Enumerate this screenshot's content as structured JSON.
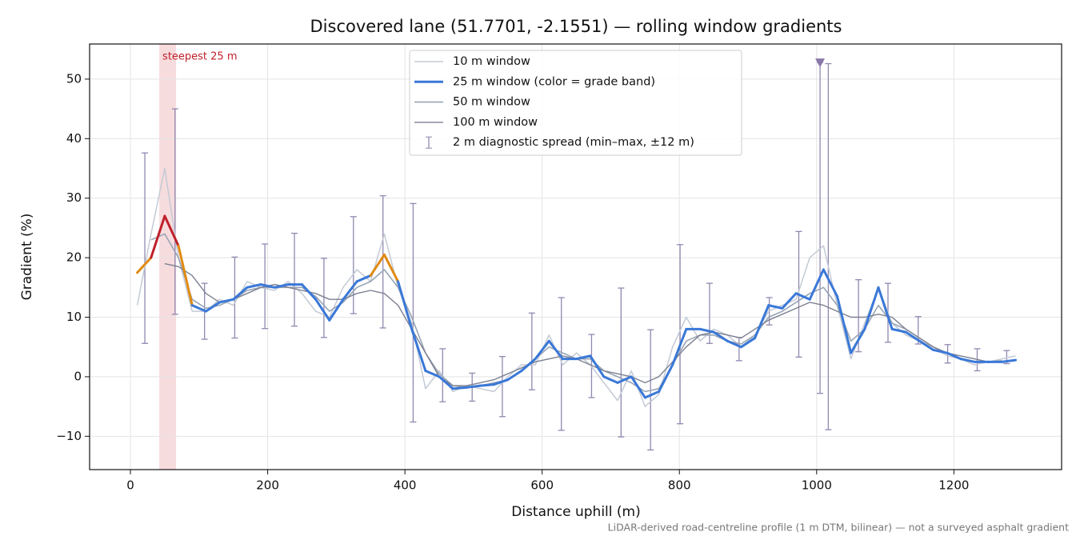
{
  "chart_data": {
    "type": "line",
    "title": "Discovered lane (51.7701, -2.1551) — rolling window gradients",
    "x_label": "Distance uphill (m)",
    "y_label": "Gradient (%)",
    "footnote": "LiDAR-derived road-centreline profile (1 m DTM, bilinear) — not a surveyed asphalt gradient",
    "xlim": [
      -59.5,
      1357
    ],
    "ylim": [
      -15.6,
      55.9
    ],
    "xticks": [
      0,
      200,
      400,
      600,
      800,
      1000,
      1200
    ],
    "yticks": [
      {
        "value": -10,
        "label": "−10"
      },
      0,
      10,
      20,
      30,
      40,
      50
    ],
    "grid": true,
    "legend": "upper center",
    "x": [
      10,
      30,
      50,
      70,
      90,
      110,
      130,
      150,
      170,
      190,
      210,
      230,
      250,
      270,
      290,
      310,
      330,
      350,
      370,
      390,
      410,
      430,
      450,
      470,
      490,
      510,
      530,
      550,
      570,
      590,
      610,
      630,
      650,
      670,
      690,
      710,
      730,
      750,
      770,
      790,
      810,
      830,
      850,
      870,
      890,
      910,
      930,
      950,
      970,
      990,
      1010,
      1030,
      1050,
      1070,
      1090,
      1110,
      1130,
      1150,
      1170,
      1190,
      1210,
      1230,
      1250,
      1270,
      1290
    ],
    "series": [
      {
        "name": "10 m window",
        "color": "#c3cad5",
        "width": 1.5,
        "values": [
          12,
          24,
          35,
          20,
          11,
          11,
          13,
          12,
          16,
          15,
          14.5,
          16,
          14,
          11,
          10,
          15,
          18,
          16,
          24,
          15,
          9,
          -2,
          1,
          -2.5,
          -1.5,
          -2,
          -2.5,
          0,
          2,
          2,
          7,
          2,
          4,
          2,
          -1,
          -4,
          1,
          -5,
          -3,
          5,
          10,
          6,
          8,
          7,
          5,
          7,
          11,
          12,
          13,
          20,
          22,
          12,
          3,
          9,
          15,
          9,
          7,
          6,
          5,
          3.5,
          3,
          2,
          2.5,
          3,
          3.5
        ]
      },
      {
        "name": "25 m window (color = grade band)",
        "color": "#3a78d8",
        "width": 3,
        "grade_bands": [
          {
            "min": 20,
            "color": "#e08a12"
          },
          {
            "min": 25,
            "color": "#c0202a"
          }
        ],
        "values": [
          17.5,
          20,
          27,
          22,
          12,
          11,
          12.5,
          13,
          15,
          15.5,
          15,
          15.5,
          15.5,
          13,
          9.5,
          13,
          16,
          17,
          20.5,
          16,
          8,
          1,
          0,
          -2,
          -1.8,
          -1.5,
          -1.3,
          -0.5,
          1,
          3,
          6,
          3,
          3,
          3.5,
          0,
          -1,
          0,
          -3.5,
          -2.5,
          2,
          8,
          8,
          7.5,
          6,
          5,
          6.5,
          12,
          11.5,
          14,
          13,
          18,
          13.5,
          4,
          8,
          15,
          8,
          7.5,
          6,
          4.5,
          4,
          3,
          2.5,
          2.5,
          2.5,
          2.8
        ]
      },
      {
        "name": "50 m window",
        "color": "#98a4b4",
        "width": 1.6,
        "values": [
          null,
          23,
          24,
          20,
          13,
          11.5,
          12,
          13,
          14.5,
          15,
          15,
          15,
          15,
          13.5,
          11,
          12.5,
          15,
          16,
          18,
          15,
          10,
          4,
          0.5,
          -1.5,
          -1.8,
          -1.5,
          -1,
          -0.5,
          1,
          3,
          5,
          4,
          3,
          3,
          1,
          0,
          -1,
          -2.5,
          -2,
          2,
          6,
          7,
          7,
          6,
          5.5,
          7,
          10,
          11,
          12.5,
          14,
          15,
          12,
          6,
          8,
          12,
          9,
          8,
          6.5,
          5,
          4,
          3,
          2.5,
          2.5,
          2.7,
          null
        ]
      },
      {
        "name": "100 m window",
        "color": "#7c8090",
        "width": 1.4,
        "values": [
          null,
          null,
          19,
          18.5,
          17,
          14,
          12.5,
          13,
          14,
          15,
          15.5,
          15,
          14.5,
          14,
          13,
          13,
          14,
          14.5,
          14,
          12,
          8,
          4,
          0,
          -1.5,
          -1.5,
          -1,
          -0.5,
          0.5,
          1.5,
          2.5,
          3,
          3.5,
          3,
          2,
          1,
          0.5,
          0,
          -1,
          0,
          2.5,
          5,
          7,
          7.5,
          7,
          6.5,
          8,
          9.5,
          10.5,
          11.5,
          12.5,
          12,
          11,
          10,
          10,
          10.5,
          10,
          8,
          6.5,
          5,
          4,
          3.5,
          3,
          2.5,
          2.5,
          null
        ]
      }
    ],
    "errorbars": {
      "name": "2 m diagnostic spread (min–max, ±12 m)",
      "color": "#9088b0",
      "x": [
        21,
        65,
        108,
        152,
        196,
        239,
        282,
        325,
        368,
        412,
        455,
        498,
        542,
        585,
        628,
        672,
        715,
        758,
        801,
        844,
        887,
        931,
        974,
        1005,
        1017,
        1061,
        1104,
        1148,
        1191,
        1234,
        1277
      ],
      "low": [
        5.6,
        10.5,
        6.3,
        6.5,
        8.1,
        8.5,
        6.6,
        10.6,
        8.2,
        -7.6,
        -4.2,
        -4.1,
        -6.7,
        -2.2,
        -9,
        -3.5,
        -10.1,
        -12.3,
        -7.9,
        5.6,
        2.7,
        8.7,
        3.3,
        -2.8,
        -8.9,
        4.2,
        5.8,
        5.5,
        2.3,
        1,
        2.2
      ],
      "high": [
        37.6,
        45,
        15.7,
        20.1,
        22.3,
        24.1,
        19.9,
        26.9,
        30.4,
        29.1,
        4.7,
        0.6,
        3.4,
        10.7,
        13.3,
        7.1,
        14.9,
        7.9,
        22.2,
        15.7,
        6.6,
        13.3,
        24.4,
        52.8,
        52.6,
        16.3,
        15.7,
        10.1,
        5.4,
        4.7,
        4.4
      ]
    },
    "peak_marker": {
      "x": 1005,
      "y": 52.8,
      "color": "#8a78aa"
    },
    "highlight": {
      "xmin": 42,
      "xmax": 66.5,
      "label": "steepest 25 m",
      "color": "#f2c4c8",
      "label_color": "#c0202a"
    }
  }
}
